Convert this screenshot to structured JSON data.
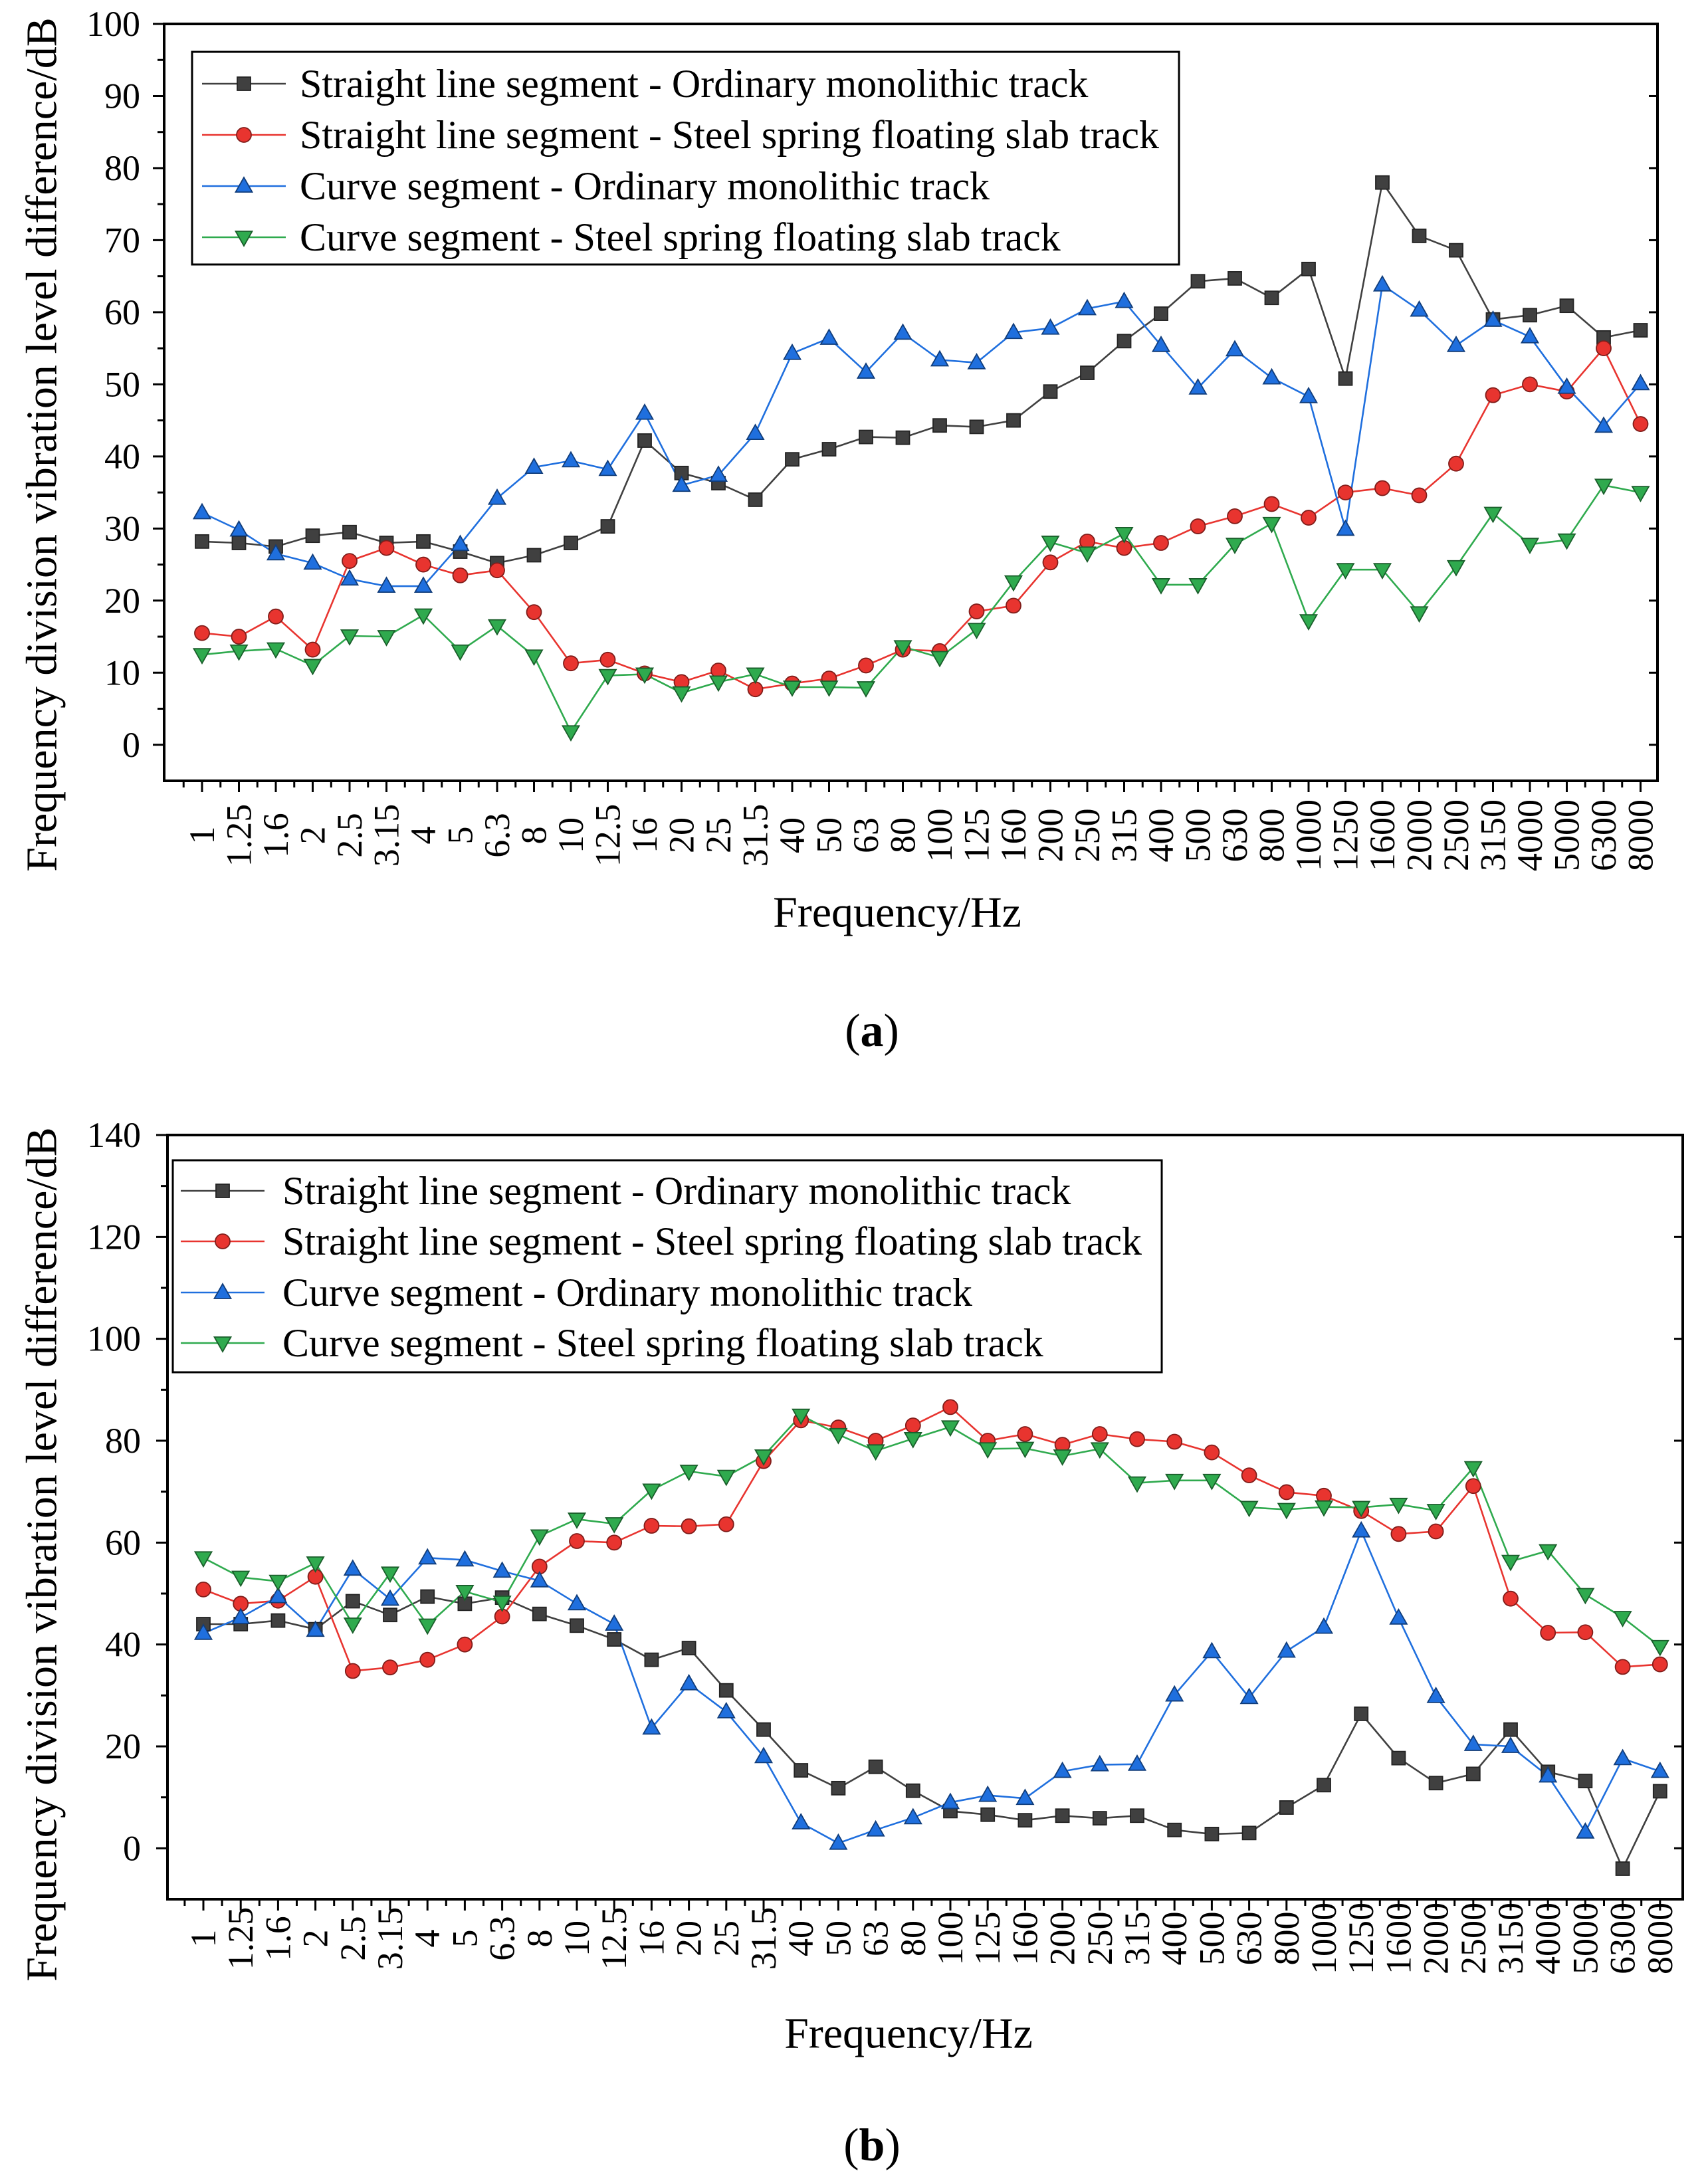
{
  "chart_data": [
    {
      "type": "line",
      "caption": {
        "prefix": "(",
        "label": "a",
        "suffix": ")"
      },
      "xlabel": "Frequency/Hz",
      "ylabel": "Frequency division vibration level difference/dB",
      "categories": [
        "1",
        "1.25",
        "1.6",
        "2",
        "2.5",
        "3.15",
        "4",
        "5",
        "6.3",
        "8",
        "10",
        "12.5",
        "16",
        "20",
        "25",
        "31.5",
        "40",
        "50",
        "63",
        "80",
        "100",
        "125",
        "160",
        "200",
        "250",
        "315",
        "400",
        "500",
        "630",
        "800",
        "1000",
        "1250",
        "1600",
        "2000",
        "2500",
        "3150",
        "4000",
        "5000",
        "6300",
        "8000"
      ],
      "ylim": [
        -5,
        100
      ],
      "yticks": [
        0,
        10,
        20,
        30,
        40,
        50,
        60,
        70,
        80,
        90,
        100
      ],
      "grid": false,
      "legend": "top-left",
      "series": [
        {
          "name": "Straight line segment - Ordinary monolithic track",
          "color": "#404040",
          "marker": "square",
          "values": [
            28.2,
            28.0,
            27.5,
            29.0,
            29.5,
            28.0,
            28.2,
            26.8,
            25.2,
            26.3,
            28.0,
            30.3,
            42.2,
            37.7,
            36.3,
            34.0,
            39.6,
            41.0,
            42.7,
            42.6,
            44.3,
            44.1,
            45.0,
            49.0,
            51.6,
            56.0,
            59.8,
            64.3,
            64.7,
            62.0,
            66.0,
            50.8,
            78.0,
            70.6,
            68.6,
            59.0,
            59.6,
            60.9,
            56.5,
            57.5
          ]
        },
        {
          "name": "Straight line segment - Steel spring floating slab track",
          "color": "#e8342f",
          "marker": "circle",
          "values": [
            15.5,
            15.0,
            17.8,
            13.2,
            25.5,
            27.3,
            25.0,
            23.5,
            24.2,
            18.4,
            11.3,
            11.8,
            9.9,
            8.7,
            10.3,
            7.7,
            8.5,
            9.2,
            11.0,
            13.2,
            13.0,
            18.5,
            19.3,
            25.3,
            28.2,
            27.3,
            28.0,
            30.3,
            31.7,
            33.4,
            31.5,
            35.0,
            35.6,
            34.6,
            39.0,
            48.5,
            50.0,
            49.0,
            55.0,
            44.5
          ]
        },
        {
          "name": "Curve segment - Ordinary monolithic track",
          "color": "#1f6fde",
          "marker": "triangle-up",
          "values": [
            32.2,
            29.8,
            26.5,
            25.2,
            23.0,
            22.0,
            22.0,
            27.8,
            34.2,
            38.5,
            39.4,
            38.2,
            46.0,
            36.0,
            37.4,
            43.2,
            54.3,
            56.4,
            51.7,
            57.1,
            53.4,
            53.0,
            57.2,
            57.8,
            60.5,
            61.5,
            55.4,
            49.5,
            54.8,
            50.9,
            48.3,
            29.9,
            63.8,
            60.3,
            55.4,
            58.9,
            56.6,
            49.6,
            44.2,
            50.1
          ]
        },
        {
          "name": "Curve segment - Steel spring floating slab track",
          "color": "#2faa4e",
          "marker": "triangle-down",
          "values": [
            12.5,
            13.0,
            13.3,
            11.0,
            15.1,
            15.0,
            18.0,
            13.0,
            16.5,
            12.3,
            1.8,
            9.6,
            9.8,
            7.2,
            8.7,
            9.8,
            8.0,
            8.0,
            7.9,
            13.6,
            12.1,
            16.0,
            22.6,
            28.1,
            26.6,
            29.3,
            22.2,
            22.2,
            27.8,
            30.7,
            17.2,
            24.3,
            24.3,
            18.3,
            24.7,
            32.1,
            27.8,
            28.4,
            36.0,
            35.0
          ]
        }
      ]
    },
    {
      "type": "line",
      "caption": {
        "prefix": "(",
        "label": "b",
        "suffix": ")"
      },
      "xlabel": "Frequency/Hz",
      "ylabel": "Frequency division vibration level difference/dB",
      "categories": [
        "1",
        "1.25",
        "1.6",
        "2",
        "2.5",
        "3.15",
        "4",
        "5",
        "6.3",
        "8",
        "10",
        "12.5",
        "16",
        "20",
        "25",
        "31.5",
        "40",
        "50",
        "63",
        "80",
        "100",
        "125",
        "160",
        "200",
        "250",
        "315",
        "400",
        "500",
        "630",
        "800",
        "1000",
        "1250",
        "1600",
        "2000",
        "2500",
        "3150",
        "4000",
        "5000",
        "6300",
        "8000"
      ],
      "ylim": [
        -10,
        140
      ],
      "yticks": [
        0,
        20,
        40,
        60,
        80,
        100,
        120,
        140
      ],
      "grid": false,
      "legend": "top-left",
      "series": [
        {
          "name": "Straight line segment - Ordinary monolithic track",
          "color": "#404040",
          "marker": "square",
          "values": [
            44.0,
            44.0,
            44.7,
            43.0,
            48.5,
            45.8,
            49.4,
            48.0,
            49.2,
            46.0,
            43.7,
            41.0,
            37.0,
            39.3,
            31.0,
            23.3,
            15.3,
            11.8,
            16.0,
            11.3,
            7.3,
            6.6,
            5.5,
            6.4,
            5.9,
            6.4,
            3.6,
            2.8,
            3.0,
            8.0,
            12.4,
            26.4,
            17.7,
            12.8,
            14.6,
            23.3,
            15.0,
            13.2,
            -4.0,
            11.2
          ]
        },
        {
          "name": "Straight line segment - Steel spring floating slab track",
          "color": "#e8342f",
          "marker": "circle",
          "values": [
            50.8,
            48.0,
            48.6,
            53.3,
            34.8,
            35.5,
            37.0,
            40.0,
            45.5,
            55.3,
            60.3,
            60.0,
            63.3,
            63.2,
            63.6,
            76.0,
            84.0,
            82.6,
            80.0,
            83.0,
            86.6,
            80.0,
            81.3,
            79.2,
            81.3,
            80.3,
            79.8,
            77.7,
            73.2,
            69.9,
            69.2,
            66.2,
            61.7,
            62.2,
            71.1,
            49.0,
            42.3,
            42.4,
            35.6,
            36.1
          ]
        },
        {
          "name": "Curve segment - Ordinary monolithic track",
          "color": "#1f6fde",
          "marker": "triangle-up",
          "values": [
            42.2,
            45.3,
            49.4,
            42.8,
            54.8,
            48.9,
            57.0,
            56.6,
            54.4,
            52.5,
            48.0,
            44.0,
            23.6,
            32.3,
            26.8,
            18.0,
            5.0,
            1.0,
            3.6,
            6.0,
            9.0,
            10.4,
            9.8,
            15.1,
            16.4,
            16.5,
            30.1,
            38.6,
            29.6,
            38.7,
            43.4,
            62.3,
            45.2,
            29.8,
            20.4,
            20.0,
            14.2,
            3.2,
            17.6,
            15.1
          ]
        },
        {
          "name": "Curve segment - Steel spring floating slab track",
          "color": "#2faa4e",
          "marker": "triangle-down",
          "values": [
            57.0,
            53.2,
            52.4,
            56.0,
            44.0,
            54.0,
            43.8,
            50.4,
            48.3,
            61.3,
            64.6,
            63.7,
            70.3,
            74.0,
            73.0,
            77.0,
            85.0,
            81.2,
            78.0,
            80.4,
            82.7,
            78.4,
            78.5,
            77.0,
            78.4,
            71.7,
            72.2,
            72.2,
            66.9,
            66.5,
            67.0,
            66.9,
            67.5,
            66.3,
            74.7,
            56.3,
            58.4,
            49.8,
            45.3,
            39.6
          ]
        }
      ]
    }
  ]
}
